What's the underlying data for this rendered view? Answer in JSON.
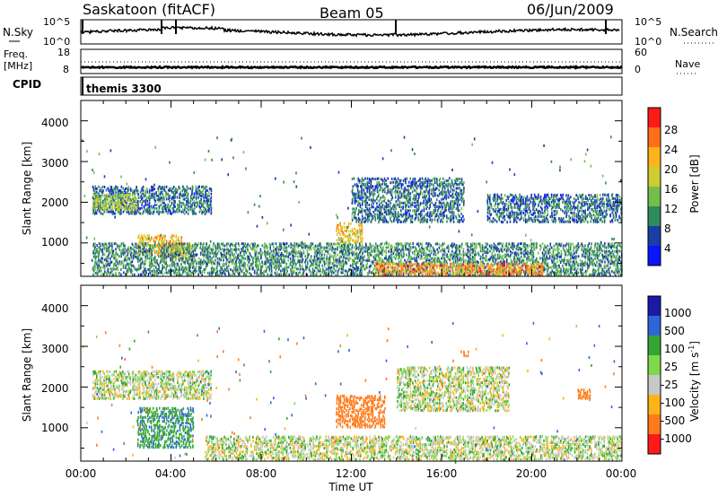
{
  "header": {
    "station": "Saskatoon (fitACF)",
    "beam": "Beam 05",
    "date": "06/Jun/2009"
  },
  "noise_panel": {
    "left_label": "N.Sky",
    "right_label": "N.Search",
    "left_ticks": [
      "10^5",
      "10^0"
    ],
    "right_ticks": [
      "10^5",
      "10^0"
    ]
  },
  "freq_panel": {
    "left_label_1": "Freq.",
    "left_label_2": "[MHz]",
    "left_ticks": [
      "18",
      "8"
    ],
    "right_label": "Nave",
    "right_ticks": [
      "60",
      "0"
    ]
  },
  "cpid_panel": {
    "label": "CPID",
    "mode": "themis 3300"
  },
  "power_panel": {
    "ylabel": "Slant Range [km]",
    "yticks": [
      "4000",
      "3000",
      "2000",
      "1000"
    ],
    "colorbar_label": "Power [dB]",
    "colorbar_ticks": [
      "28",
      "24",
      "20",
      "16",
      "12",
      "8",
      "4"
    ]
  },
  "velocity_panel": {
    "ylabel": "Slant Range [km]",
    "yticks": [
      "4000",
      "3000",
      "2000",
      "1000"
    ],
    "colorbar_label": "Velocity [m s",
    "colorbar_sup": "-1",
    "colorbar_label_end": "]",
    "colorbar_ticks": [
      "1000",
      "500",
      "100",
      "25",
      "-25",
      "-100",
      "-500",
      "-1000"
    ]
  },
  "xaxis": {
    "title": "Time UT",
    "ticks": [
      "00:00",
      "04:00",
      "08:00",
      "12:00",
      "16:00",
      "20:00",
      "00:00"
    ]
  },
  "colors": {
    "power_scale": [
      "#ff1a1a",
      "#ff6f1a",
      "#ffb31a",
      "#cccc33",
      "#73bf4d",
      "#2e8c5c",
      "#1a3da6",
      "#0a14ff"
    ],
    "velocity_scale": [
      "#1a1aa6",
      "#2e66d9",
      "#33a633",
      "#7fd94d",
      "#c8c8c8",
      "#ffb31a",
      "#ff7a1a",
      "#ff1a1a"
    ]
  },
  "chart_data": [
    {
      "type": "heatmap",
      "title": "Power",
      "xlabel": "Time UT",
      "ylabel": "Slant Range [km]",
      "xlim": [
        "00:00",
        "24:00"
      ],
      "ylim": [
        180,
        4500
      ],
      "colorbar": {
        "label": "Power [dB]",
        "range": [
          0,
          32
        ],
        "ticks": [
          4,
          8,
          12,
          16,
          20,
          24,
          28
        ]
      },
      "regions": [
        {
          "t": [
            0.5,
            5.8
          ],
          "range_km": [
            1700,
            2400
          ],
          "power_db": 8
        },
        {
          "t": [
            0.5,
            2.5
          ],
          "range_km": [
            1800,
            2200
          ],
          "power_db": 16
        },
        {
          "t": [
            2.5,
            4.5
          ],
          "range_km": [
            700,
            1200
          ],
          "power_db": 22
        },
        {
          "t": [
            3.5,
            5.0
          ],
          "range_km": [
            600,
            1000
          ],
          "power_db": 20
        },
        {
          "t": [
            0.5,
            24.0
          ],
          "range_km": [
            200,
            1000
          ],
          "power_db": 10
        },
        {
          "t": [
            11.3,
            12.5
          ],
          "range_km": [
            1000,
            1500
          ],
          "power_db": 20
        },
        {
          "t": [
            12.0,
            17.0
          ],
          "range_km": [
            1500,
            2600
          ],
          "power_db": 8
        },
        {
          "t": [
            13.0,
            20.5
          ],
          "range_km": [
            200,
            500
          ],
          "power_db": 24
        },
        {
          "t": [
            18.0,
            24.0
          ],
          "range_km": [
            1500,
            2200
          ],
          "power_db": 8
        }
      ]
    },
    {
      "type": "heatmap",
      "title": "Velocity",
      "xlabel": "Time UT",
      "ylabel": "Slant Range [km]",
      "xlim": [
        "00:00",
        "24:00"
      ],
      "ylim": [
        180,
        4500
      ],
      "colorbar": {
        "label": "Velocity [m s-1]",
        "ticks": [
          1000,
          500,
          100,
          25,
          -25,
          -100,
          -500,
          -1000
        ]
      },
      "regions": [
        {
          "t": [
            0.5,
            5.8
          ],
          "range_km": [
            1700,
            2400
          ],
          "velocity_ms": 0
        },
        {
          "t": [
            2.5,
            5.0
          ],
          "range_km": [
            500,
            1500
          ],
          "velocity_ms": 80
        },
        {
          "t": [
            5.5,
            24.0
          ],
          "range_km": [
            200,
            800
          ],
          "velocity_ms": 0
        },
        {
          "t": [
            11.3,
            13.5
          ],
          "range_km": [
            1000,
            1800
          ],
          "velocity_ms": -300
        },
        {
          "t": [
            14.0,
            19.0
          ],
          "range_km": [
            1400,
            2500
          ],
          "velocity_ms": 0
        },
        {
          "t": [
            22.0,
            22.6
          ],
          "range_km": [
            1700,
            1950
          ],
          "velocity_ms": -200
        },
        {
          "t": [
            16.8,
            17.2
          ],
          "range_km": [
            2700,
            2900
          ],
          "velocity_ms": -200
        }
      ]
    }
  ]
}
